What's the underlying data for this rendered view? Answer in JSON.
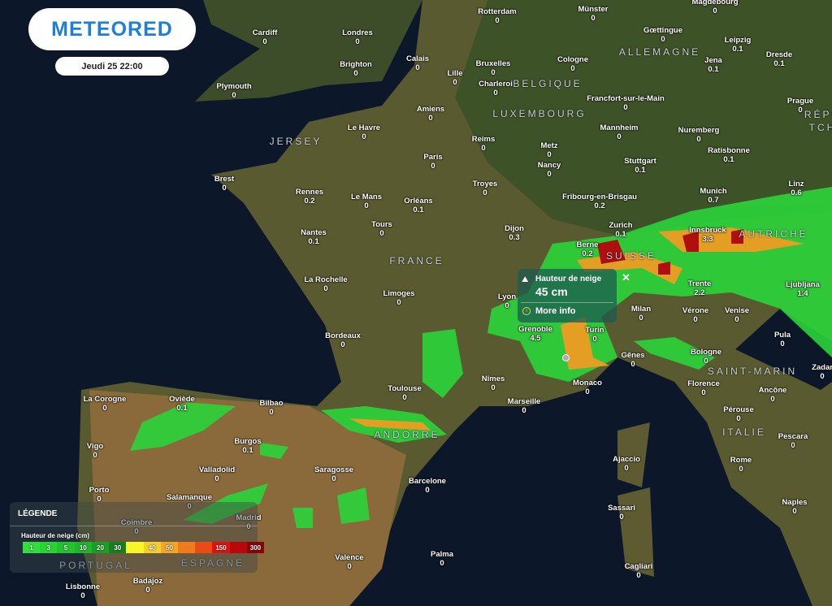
{
  "brand": {
    "logo": "METEORED",
    "datetime": "Jeudi 25 22:00"
  },
  "popup": {
    "title": "Hauteur de neige",
    "value": "45 cm",
    "more": "More info",
    "icon": "snow-mountain-icon",
    "close_icon": "close-icon",
    "info_icon": "info-icon"
  },
  "legend": {
    "title": "LÉGENDE",
    "subtitle": "Hauteur de neige (cm)",
    "scale": [
      {
        "label": "1",
        "color": "#2fe03a"
      },
      {
        "label": "3",
        "color": "#28d434"
      },
      {
        "label": "5",
        "color": "#22c42e"
      },
      {
        "label": "10",
        "color": "#20b52b"
      },
      {
        "label": "20",
        "color": "#1c9e26"
      },
      {
        "label": "30",
        "color": "#177f1f"
      },
      {
        "label": "",
        "color": "#f6f62a"
      },
      {
        "label": "40",
        "color": "#f5d02a"
      },
      {
        "label": "50",
        "color": "#f5a623"
      },
      {
        "label": "",
        "color": "#f07a1c"
      },
      {
        "label": "",
        "color": "#ea4a14"
      },
      {
        "label": "150",
        "color": "#e0120f"
      },
      {
        "label": "",
        "color": "#b8080c"
      },
      {
        "label": "300",
        "color": "#8a0308"
      }
    ]
  },
  "countries": [
    "ALLEMAGNE",
    "BELGIQUE",
    "LUXEMBOURG",
    "JERSEY",
    "FRANCE",
    "SUISSE",
    "AUTRICHE",
    "RÉPUB",
    "TCHÈ",
    "SAINT-MARIN",
    "ITALIE",
    "ANDORRE",
    "PORTUGAL",
    "ESPAGNE"
  ],
  "cities": [
    {
      "n": "Cardiff",
      "v": "0"
    },
    {
      "n": "Londres",
      "v": "0"
    },
    {
      "n": "Rotterdam",
      "v": "0"
    },
    {
      "n": "Münster",
      "v": "0"
    },
    {
      "n": "Magdebourg",
      "v": "0"
    },
    {
      "n": "Brighton",
      "v": "0"
    },
    {
      "n": "Calais",
      "v": "0"
    },
    {
      "n": "Bruxelles",
      "v": "0"
    },
    {
      "n": "Cologne",
      "v": "0"
    },
    {
      "n": "Gœttingue",
      "v": "0"
    },
    {
      "n": "Leipzig",
      "v": "0.1"
    },
    {
      "n": "Jena",
      "v": "0.1"
    },
    {
      "n": "Dresde",
      "v": "0.1"
    },
    {
      "n": "Plymouth",
      "v": "0"
    },
    {
      "n": "Lille",
      "v": "0"
    },
    {
      "n": "Charleroi",
      "v": "0"
    },
    {
      "n": "Amiens",
      "v": "0"
    },
    {
      "n": "Francfort-sur-le-Main",
      "v": "0"
    },
    {
      "n": "Prague",
      "v": "0"
    },
    {
      "n": "Le Havre",
      "v": "0"
    },
    {
      "n": "Reims",
      "v": "0"
    },
    {
      "n": "Metz",
      "v": "0"
    },
    {
      "n": "Mannheim",
      "v": "0"
    },
    {
      "n": "Nuremberg",
      "v": "0"
    },
    {
      "n": "Ratisbonne",
      "v": "0.1"
    },
    {
      "n": "Paris",
      "v": "0"
    },
    {
      "n": "Nancy",
      "v": "0"
    },
    {
      "n": "Stuttgart",
      "v": "0.1"
    },
    {
      "n": "Brest",
      "v": "0"
    },
    {
      "n": "Troyes",
      "v": "0"
    },
    {
      "n": "Rennes",
      "v": "0.2"
    },
    {
      "n": "Le Mans",
      "v": "0"
    },
    {
      "n": "Orléans",
      "v": "0.1"
    },
    {
      "n": "Fribourg-en-Brisgau",
      "v": "0.2"
    },
    {
      "n": "Munich",
      "v": "0.7"
    },
    {
      "n": "Linz",
      "v": "0.6"
    },
    {
      "n": "Tours",
      "v": "0"
    },
    {
      "n": "Nantes",
      "v": "0.1"
    },
    {
      "n": "Dijon",
      "v": "0.3"
    },
    {
      "n": "Zurich",
      "v": "0.1"
    },
    {
      "n": "Berne",
      "v": "0.2"
    },
    {
      "n": "Innsbruck",
      "v": "3.3"
    },
    {
      "n": "Trente",
      "v": "2.2"
    },
    {
      "n": "Ljubljana",
      "v": "1.4"
    },
    {
      "n": "La Rochelle",
      "v": "0"
    },
    {
      "n": "Limoges",
      "v": "0"
    },
    {
      "n": "Lyon",
      "v": "0"
    },
    {
      "n": "Grenoble",
      "v": "4.5"
    },
    {
      "n": "Milan",
      "v": "0"
    },
    {
      "n": "Vérone",
      "v": "0"
    },
    {
      "n": "Venise",
      "v": "0"
    },
    {
      "n": "Turin",
      "v": "0"
    },
    {
      "n": "Bordeaux",
      "v": "0"
    },
    {
      "n": "Pula",
      "v": "0"
    },
    {
      "n": "Gênes",
      "v": "0"
    },
    {
      "n": "Bologne",
      "v": "0"
    },
    {
      "n": "Florence",
      "v": "0"
    },
    {
      "n": "Nîmes",
      "v": "0"
    },
    {
      "n": "Toulouse",
      "v": "0"
    },
    {
      "n": "Marseille",
      "v": "0"
    },
    {
      "n": "Monaco",
      "v": "0"
    },
    {
      "n": "Ancône",
      "v": "0"
    },
    {
      "n": "Zadar",
      "v": "0"
    },
    {
      "n": "Oviède",
      "v": "0.1"
    },
    {
      "n": "La Corogne",
      "v": "0"
    },
    {
      "n": "Bilbao",
      "v": "0"
    },
    {
      "n": "Pérouse",
      "v": "0"
    },
    {
      "n": "Vigo",
      "v": "0"
    },
    {
      "n": "Burgos",
      "v": "0.1"
    },
    {
      "n": "Pescara",
      "v": "0"
    },
    {
      "n": "Valladolid",
      "v": "0"
    },
    {
      "n": "Saragosse",
      "v": "0"
    },
    {
      "n": "Ajaccio",
      "v": "0"
    },
    {
      "n": "Rome",
      "v": "0"
    },
    {
      "n": "Porto",
      "v": "0"
    },
    {
      "n": "Barcelone",
      "v": "0"
    },
    {
      "n": "Salamanque",
      "v": "0"
    },
    {
      "n": "Madrid",
      "v": "0"
    },
    {
      "n": "Sassari",
      "v": "0"
    },
    {
      "n": "Naples",
      "v": "0"
    },
    {
      "n": "Coimbre",
      "v": "0"
    },
    {
      "n": "Palma",
      "v": "0"
    },
    {
      "n": "Valence",
      "v": "0"
    },
    {
      "n": "Badajoz",
      "v": "0"
    },
    {
      "n": "Cagliari",
      "v": "0"
    },
    {
      "n": "Lisbonne",
      "v": "0"
    }
  ]
}
